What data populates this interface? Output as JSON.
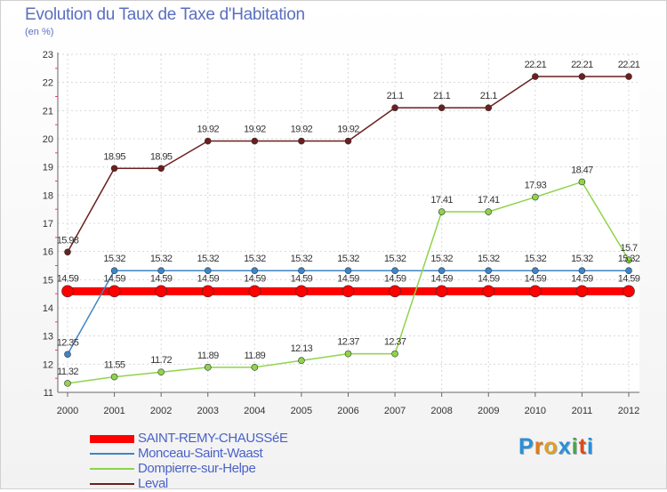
{
  "title": "Evolution du Taux de Taxe d'Habitation",
  "subtitle": "(en %)",
  "logo": {
    "text": "Proxiti",
    "colors": [
      "#2a8fd8",
      "#e07a1a",
      "#e0a020",
      "#2a8fd8",
      "#4aa24a",
      "#e04a1a",
      "#2a8fd8"
    ]
  },
  "chart_data": {
    "type": "line",
    "x": [
      "2000",
      "2001",
      "2002",
      "2003",
      "2004",
      "2005",
      "2006",
      "2007",
      "2008",
      "2009",
      "2010",
      "2011",
      "2012"
    ],
    "ylim": [
      11,
      23
    ],
    "yticks": [
      "11",
      "12",
      "13",
      "14",
      "15",
      "16",
      "17",
      "18",
      "19",
      "20",
      "21",
      "22",
      "23"
    ],
    "grid": true,
    "legend_position": "bottom-left",
    "series": [
      {
        "name": "SAINT-REMY-CHAUSSéE",
        "color": "#ff0000",
        "values": [
          14.59,
          14.59,
          14.59,
          14.59,
          14.59,
          14.59,
          14.59,
          14.59,
          14.59,
          14.59,
          14.59,
          14.59,
          14.59
        ],
        "labels": [
          "14.59",
          "14.59",
          "14.59",
          "14.59",
          "14.59",
          "14.59",
          "14.59",
          "14.59",
          "14.59",
          "14.59",
          "14.59",
          "14.59",
          "14.59"
        ]
      },
      {
        "name": "Monceau-Saint-Waast",
        "color": "#3d85c6",
        "values": [
          12.35,
          15.32,
          15.32,
          15.32,
          15.32,
          15.32,
          15.32,
          15.32,
          15.32,
          15.32,
          15.32,
          15.32,
          15.32
        ],
        "labels": [
          "12.35",
          "15.32",
          "15.32",
          "15.32",
          "15.32",
          "15.32",
          "15.32",
          "15.32",
          "15.32",
          "15.32",
          "15.32",
          "15.32",
          "15.32"
        ]
      },
      {
        "name": "Dompierre-sur-Helpe",
        "color": "#8fd44a",
        "values": [
          11.32,
          11.55,
          11.72,
          11.89,
          11.89,
          12.13,
          12.37,
          12.37,
          17.41,
          17.41,
          17.93,
          18.47,
          15.7
        ],
        "labels": [
          "11.32",
          "11.55",
          "11.72",
          "11.89",
          "11.89",
          "12.13",
          "12.37",
          "12.37",
          "17.41",
          "17.41",
          "17.93",
          "18.47",
          "15.7"
        ]
      },
      {
        "name": "Leval",
        "color": "#6b1f1f",
        "values": [
          15.98,
          18.95,
          18.95,
          19.92,
          19.92,
          19.92,
          19.92,
          21.1,
          21.1,
          21.1,
          22.21,
          22.21,
          22.21
        ],
        "labels": [
          "15.98",
          "18.95",
          "18.95",
          "19.92",
          "19.92",
          "19.92",
          "19.92",
          "21.1",
          "21.1",
          "21.1",
          "22.21",
          "22.21",
          "22.21"
        ]
      }
    ]
  }
}
